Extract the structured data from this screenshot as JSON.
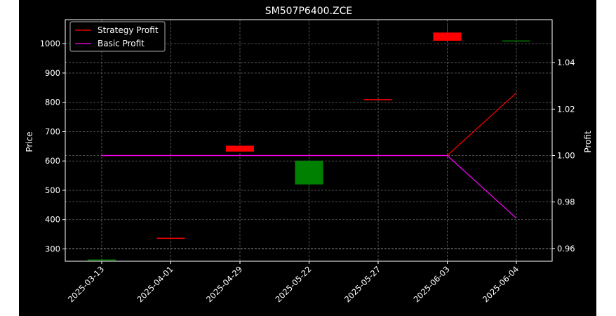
{
  "chart_data": {
    "type": "candlestick",
    "title": "SM507P6400.ZCE",
    "xlabel": "",
    "ylabel": "Price",
    "y2label": "Profit",
    "categories": [
      "2025-03-13",
      "2025-04-01",
      "2025-04-29",
      "2025-05-22",
      "2025-05-27",
      "2025-06-03",
      "2025-06-04"
    ],
    "ylim": [
      258,
      1082
    ],
    "y2lim": [
      0.9545,
      1.0585
    ],
    "yticks": [
      300,
      400,
      500,
      600,
      700,
      800,
      900,
      1000
    ],
    "y2ticks": [
      0.96,
      0.98,
      1.0,
      1.02,
      1.04
    ],
    "y2tick_labels": [
      "0.96",
      "0.98",
      "1.00",
      "1.02",
      "1.04"
    ],
    "grid": true,
    "legend_position": "upper-left",
    "candles": [
      {
        "date": "2025-03-13",
        "open": 262,
        "close": 264,
        "high": 264,
        "low": 262,
        "color": "#008000"
      },
      {
        "date": "2025-04-01",
        "open": 338,
        "close": 337,
        "high": 338,
        "low": 337,
        "color": "#ff0000"
      },
      {
        "date": "2025-04-29",
        "open": 652,
        "close": 632,
        "high": 652,
        "low": 632,
        "color": "#ff0000"
      },
      {
        "date": "2025-05-22",
        "open": 520,
        "close": 601,
        "high": 601,
        "low": 497,
        "color": "#008000"
      },
      {
        "date": "2025-05-27",
        "open": 811,
        "close": 809,
        "high": 811,
        "low": 809,
        "color": "#ff0000"
      },
      {
        "date": "2025-06-03",
        "open": 1038,
        "close": 1010,
        "high": 1065,
        "low": 1010,
        "color": "#ff0000"
      },
      {
        "date": "2025-06-04",
        "open": 1008,
        "close": 1011,
        "high": 1011,
        "low": 1008,
        "color": "#008000"
      }
    ],
    "series": [
      {
        "name": "Strategy Profit",
        "color": "#ff0000",
        "axis": "right",
        "values": [
          1.0,
          1.0,
          1.0,
          1.0,
          1.0,
          1.0,
          1.027
        ]
      },
      {
        "name": "Basic Profit",
        "color": "#ff00ff",
        "axis": "right",
        "values": [
          1.0,
          1.0,
          1.0,
          1.0,
          1.0,
          1.0,
          0.973
        ]
      }
    ]
  }
}
